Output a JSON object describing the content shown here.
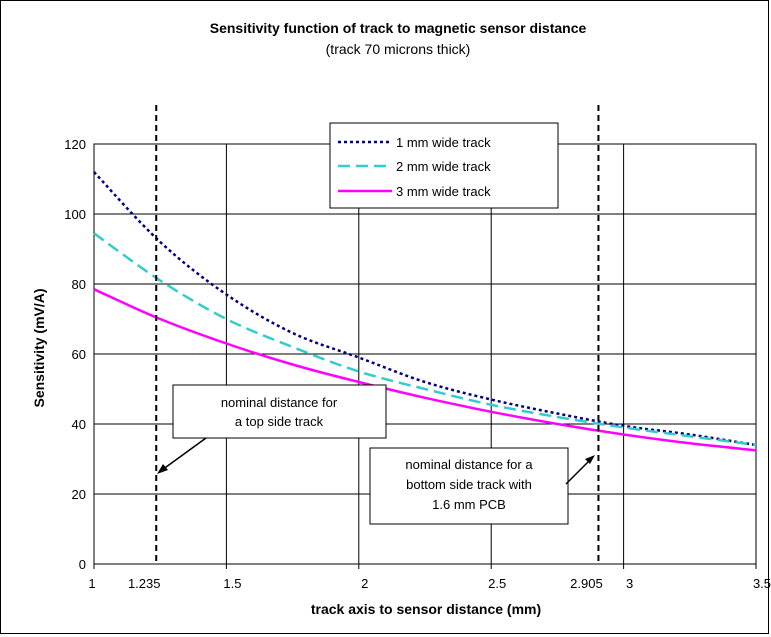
{
  "chart_data": {
    "type": "line",
    "title": "Sensitivity function of track to magnetic sensor distance",
    "subtitle": "(track 70 microns thick)",
    "xlabel": "track axis to sensor distance (mm)",
    "ylabel": "Sensitivity (mV/A)",
    "xlim": [
      1,
      3.5
    ],
    "ylim": [
      0,
      120
    ],
    "x_ticks": [
      "1",
      "1.5",
      "2",
      "2.5",
      "3",
      "3.5"
    ],
    "extra_x_ticks": [
      "1.235",
      "2.905"
    ],
    "y_ticks": [
      "0",
      "20",
      "40",
      "60",
      "80",
      "100",
      "120"
    ],
    "grid": true,
    "legend_position": "top-right",
    "series": [
      {
        "name": "1 mm wide track",
        "color": "#000080",
        "style": "dotted",
        "x": [
          1.0,
          1.25,
          1.5,
          1.75,
          2.0,
          2.25,
          2.5,
          2.75,
          3.0,
          3.25,
          3.5
        ],
        "y": [
          112,
          92,
          77,
          66,
          59,
          52,
          47,
          43,
          39.5,
          37,
          34
        ]
      },
      {
        "name": "2 mm wide track",
        "color": "#33CCCC",
        "style": "dashed",
        "x": [
          1.0,
          1.25,
          1.5,
          1.75,
          2.0,
          2.25,
          2.5,
          2.75,
          3.0,
          3.25,
          3.5
        ],
        "y": [
          94.5,
          81,
          70,
          62,
          55,
          50,
          45.5,
          42,
          39,
          36.5,
          34
        ]
      },
      {
        "name": "3 mm wide track",
        "color": "#FF00FF",
        "style": "solid",
        "x": [
          1.0,
          1.25,
          1.5,
          1.75,
          2.0,
          2.25,
          2.5,
          2.75,
          3.0,
          3.25,
          3.5
        ],
        "y": [
          78.5,
          70,
          63,
          57,
          52,
          47.5,
          43.5,
          40,
          37,
          34.5,
          32.5
        ]
      }
    ],
    "vertical_markers": [
      1.235,
      2.905
    ],
    "annotations": [
      {
        "text_lines": [
          "nominal distance for",
          "a top side track"
        ],
        "points_to_x": 1.235
      },
      {
        "text_lines": [
          "nominal distance for a",
          "bottom side track with",
          "1.6 mm PCB"
        ],
        "points_to_x": 2.905
      }
    ]
  }
}
